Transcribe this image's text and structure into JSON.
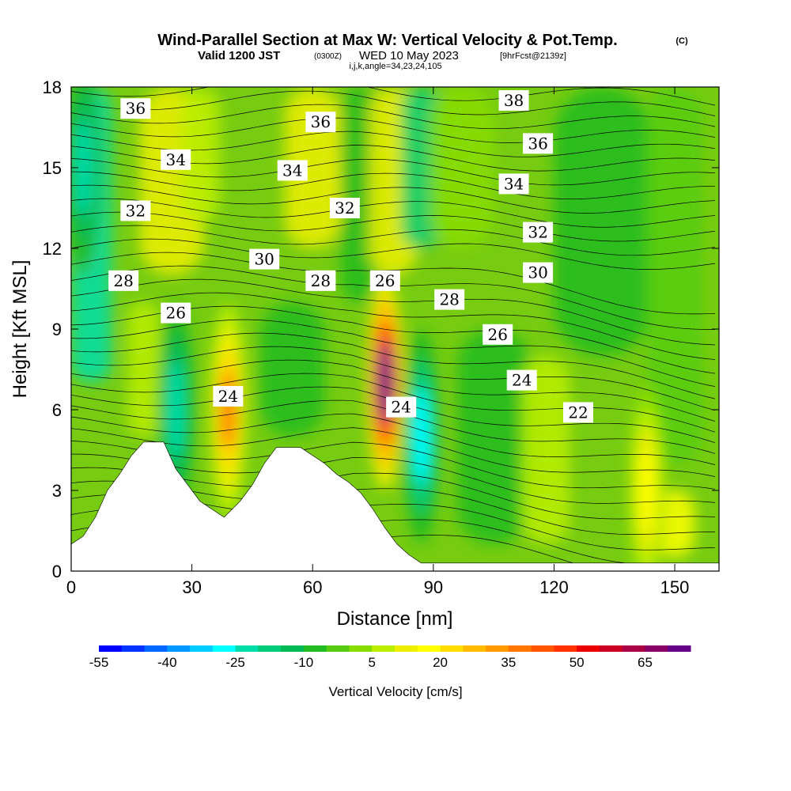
{
  "title": {
    "main": "Wind-Parallel Section at Max W: Vertical Velocity & Pot.Temp.",
    "copyright": "(C)",
    "valid_prefix": "Valid 1200 JST",
    "valid_zulu": "(0300Z)",
    "valid_date": "WED 10 May 2023",
    "forecast": "[9hrFcst@2139z]",
    "indices": "i,j,k,angle=34,23,24,105"
  },
  "axes": {
    "xlabel": "Distance [nm]",
    "ylabel": "Height [Kft MSL]",
    "xlim": [
      0,
      161
    ],
    "ylim": [
      0,
      18
    ],
    "x_ticks": [
      0,
      30,
      60,
      90,
      120,
      150
    ],
    "y_ticks": [
      0,
      3,
      6,
      9,
      12,
      15,
      18
    ]
  },
  "colorbar": {
    "label": "Vertical Velocity [cm/s]",
    "tick_labels": [
      "-55",
      "-40",
      "-25",
      "-10",
      "5",
      "20",
      "35",
      "50",
      "65"
    ],
    "colors": [
      "#0000ff",
      "#0033ff",
      "#0066ff",
      "#0099ff",
      "#00ccff",
      "#00ffff",
      "#00ddaa",
      "#00cc77",
      "#00bb55",
      "#22bb22",
      "#55cc11",
      "#88dd00",
      "#bbee00",
      "#eeee00",
      "#ffff00",
      "#ffdd00",
      "#ffbb00",
      "#ff9900",
      "#ff7700",
      "#ff5500",
      "#ff3300",
      "#ee0000",
      "#cc0022",
      "#aa0044",
      "#880066",
      "#660088"
    ]
  },
  "chart_data": {
    "type": "heatmap",
    "title": "Wind-Parallel Section at Max W: Vertical Velocity & Pot.Temp.",
    "xlabel": "Distance [nm]",
    "ylabel": "Height [Kft MSL]",
    "xlim": [
      0,
      161
    ],
    "ylim": [
      0,
      18
    ],
    "colorbar_label": "Vertical Velocity [cm/s]",
    "colorbar_range": [
      -55,
      75
    ],
    "terrain_profile": [
      {
        "x": 0,
        "z": 1.0
      },
      {
        "x": 3,
        "z": 1.3
      },
      {
        "x": 6,
        "z": 2.0
      },
      {
        "x": 9,
        "z": 3.0
      },
      {
        "x": 12,
        "z": 3.6
      },
      {
        "x": 15,
        "z": 4.3
      },
      {
        "x": 18,
        "z": 4.8
      },
      {
        "x": 23,
        "z": 4.8
      },
      {
        "x": 26,
        "z": 3.8
      },
      {
        "x": 29,
        "z": 3.2
      },
      {
        "x": 32,
        "z": 2.6
      },
      {
        "x": 35,
        "z": 2.3
      },
      {
        "x": 38,
        "z": 2.0
      },
      {
        "x": 42,
        "z": 2.6
      },
      {
        "x": 45,
        "z": 3.2
      },
      {
        "x": 48,
        "z": 4.0
      },
      {
        "x": 51,
        "z": 4.6
      },
      {
        "x": 57,
        "z": 4.6
      },
      {
        "x": 60,
        "z": 4.3
      },
      {
        "x": 63,
        "z": 4.0
      },
      {
        "x": 66,
        "z": 3.6
      },
      {
        "x": 69,
        "z": 3.3
      },
      {
        "x": 72,
        "z": 2.9
      },
      {
        "x": 75,
        "z": 2.3
      },
      {
        "x": 78,
        "z": 1.6
      },
      {
        "x": 81,
        "z": 1.0
      },
      {
        "x": 84,
        "z": 0.6
      },
      {
        "x": 87,
        "z": 0.3
      },
      {
        "x": 90,
        "z": 0.3
      },
      {
        "x": 161,
        "z": 0.3
      }
    ],
    "vertical_velocity_features": [
      {
        "type": "updraft",
        "x": 78,
        "z": 7.0,
        "peak": 70
      },
      {
        "type": "updraft",
        "x": 39,
        "z": 6.0,
        "peak": 35
      },
      {
        "type": "downdraft",
        "x": 87,
        "z": 5.0,
        "peak": -30
      },
      {
        "type": "downdraft",
        "x": 26,
        "z": 6.0,
        "peak": -25
      },
      {
        "type": "downdraft",
        "x": 3,
        "z": 15.0,
        "peak": -25
      },
      {
        "type": "updraft",
        "x": 143,
        "z": 3.0,
        "peak": 20
      }
    ],
    "theta_contour_labels": [
      {
        "value": "36",
        "x": 16,
        "z": 17.2
      },
      {
        "value": "36",
        "x": 62,
        "z": 16.7
      },
      {
        "value": "38",
        "x": 110,
        "z": 17.5
      },
      {
        "value": "36",
        "x": 116,
        "z": 15.9
      },
      {
        "value": "34",
        "x": 26,
        "z": 15.3
      },
      {
        "value": "34",
        "x": 55,
        "z": 14.9
      },
      {
        "value": "34",
        "x": 110,
        "z": 14.4
      },
      {
        "value": "32",
        "x": 16,
        "z": 13.4
      },
      {
        "value": "32",
        "x": 68,
        "z": 13.5
      },
      {
        "value": "32",
        "x": 116,
        "z": 12.6
      },
      {
        "value": "30",
        "x": 48,
        "z": 11.6
      },
      {
        "value": "30",
        "x": 116,
        "z": 11.1
      },
      {
        "value": "28",
        "x": 13,
        "z": 10.8
      },
      {
        "value": "28",
        "x": 62,
        "z": 10.8
      },
      {
        "value": "28",
        "x": 94,
        "z": 10.1
      },
      {
        "value": "26",
        "x": 26,
        "z": 9.6
      },
      {
        "value": "26",
        "x": 78,
        "z": 10.8
      },
      {
        "value": "26",
        "x": 106,
        "z": 8.8
      },
      {
        "value": "24",
        "x": 39,
        "z": 6.5
      },
      {
        "value": "24",
        "x": 82,
        "z": 6.1
      },
      {
        "value": "24",
        "x": 112,
        "z": 7.1
      },
      {
        "value": "22",
        "x": 126,
        "z": 5.9
      }
    ]
  }
}
